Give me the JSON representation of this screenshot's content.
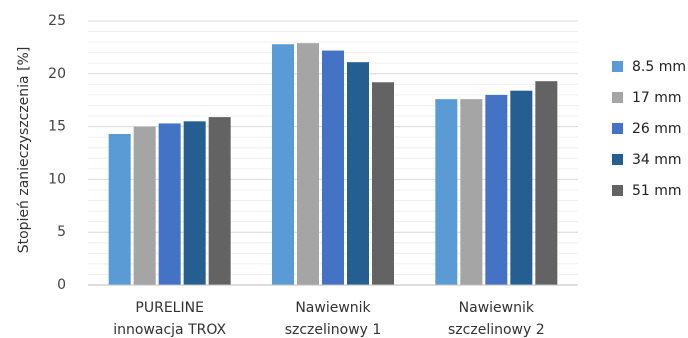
{
  "chart_data": {
    "type": "bar",
    "categories": [
      [
        "PURELINE",
        "innowacja TROX"
      ],
      [
        "Nawiewnik",
        "szczelinowy 1"
      ],
      [
        "Nawiewnik",
        "szczelinowy 2"
      ]
    ],
    "series": [
      {
        "name": "8.5 mm",
        "color": "#5b9bd5",
        "values": [
          14.3,
          22.8,
          17.6
        ]
      },
      {
        "name": "17 mm",
        "color": "#a5a5a5",
        "values": [
          15.0,
          22.9,
          17.6
        ]
      },
      {
        "name": "26 mm",
        "color": "#4472c4",
        "values": [
          15.3,
          22.2,
          18.0
        ]
      },
      {
        "name": "34 mm",
        "color": "#255e91",
        "values": [
          15.5,
          21.1,
          18.4
        ]
      },
      {
        "name": "51 mm",
        "color": "#636363",
        "values": [
          15.9,
          19.2,
          19.3
        ]
      }
    ],
    "title": "",
    "xlabel": "",
    "ylabel": "Stopień zanieczyszczenia [%]",
    "ylim": [
      0,
      25
    ],
    "yticks": [
      0,
      5,
      10,
      15,
      20,
      25
    ],
    "grid": true,
    "legend": "right"
  }
}
